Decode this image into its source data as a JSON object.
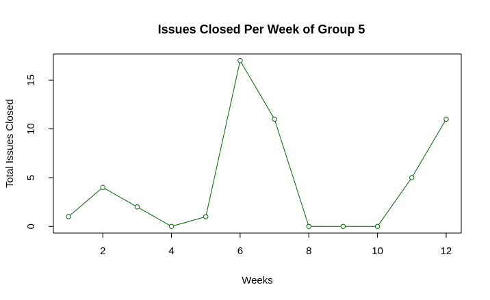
{
  "chart_data": {
    "type": "line",
    "title": "Issues Closed Per Week of Group 5",
    "xlabel": "Weeks",
    "ylabel": "Total Issues Closed",
    "x": [
      1,
      2,
      3,
      4,
      5,
      6,
      7,
      8,
      9,
      10,
      11,
      12
    ],
    "series": [
      {
        "values": [
          1,
          4,
          2,
          0,
          1,
          17,
          11,
          0,
          0,
          0,
          5,
          11
        ]
      }
    ],
    "xlim": [
      0.56,
      12.44
    ],
    "ylim": [
      -0.68,
      17.68
    ],
    "xticks": [
      2,
      4,
      6,
      8,
      10,
      12
    ],
    "yticks": [
      0,
      5,
      10,
      15
    ],
    "line_color": "#006400",
    "marker": "open-circle",
    "grid": false,
    "legend": "none"
  }
}
